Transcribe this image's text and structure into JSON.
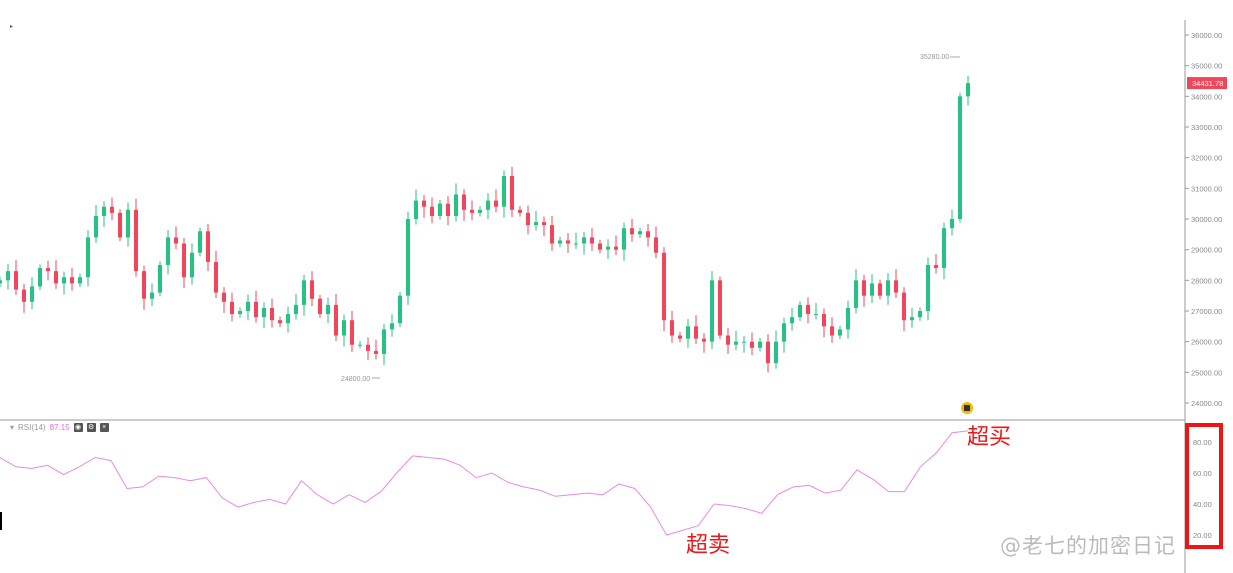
{
  "chart_data": [
    {
      "type": "candlestick",
      "ylim": [
        23600,
        36400
      ],
      "yticks": [
        "36000.00",
        "35000.00",
        "34000.00",
        "33000.00",
        "32000.00",
        "31000.00",
        "30000.00",
        "29000.00",
        "28000.00",
        "27000.00",
        "26000.00",
        "25000.00",
        "24000.00"
      ],
      "closes": [
        28000,
        28300,
        27700,
        27300,
        27800,
        28400,
        28300,
        27900,
        28100,
        27900,
        28100,
        29400,
        30100,
        30400,
        30200,
        29400,
        30300,
        28300,
        27400,
        27600,
        28500,
        29400,
        29200,
        28100,
        28900,
        29600,
        28600,
        27600,
        27300,
        26900,
        27000,
        27300,
        26800,
        27100,
        26700,
        26600,
        26900,
        27200,
        28000,
        27400,
        26900,
        27200,
        26200,
        26700,
        25900,
        25900,
        25700,
        25600,
        26400,
        26600,
        27500,
        30000,
        30600,
        30400,
        30100,
        30500,
        30100,
        30800,
        30300,
        30200,
        30300,
        30600,
        30400,
        31400,
        30300,
        30200,
        29800,
        29900,
        29800,
        29200,
        29300,
        29200,
        29200,
        29400,
        29200,
        29000,
        29100,
        29000,
        29700,
        29500,
        29600,
        29400,
        28900,
        26700,
        26200,
        26100,
        26500,
        26100,
        26000,
        28000,
        26200,
        25900,
        26000,
        26000,
        25800,
        26000,
        25300,
        26000,
        26600,
        26800,
        27200,
        26900,
        26900,
        26500,
        26200,
        26400,
        27100,
        28000,
        27500,
        27900,
        27500,
        28000,
        27600,
        26700,
        26800,
        27000,
        28500,
        28400,
        29700,
        30000,
        34000,
        34430
      ],
      "last_price": "34431.78",
      "high_label": "35280.00",
      "low_label": "24800.00",
      "colors": {
        "up": "#26c281",
        "down": "#f0455a"
      }
    },
    {
      "type": "line",
      "name": "RSI(14)",
      "value": "87.15",
      "ylim": [
        10,
        95
      ],
      "yticks": [
        "80.00",
        "60.00",
        "40.00",
        "20.00"
      ],
      "values": [
        70,
        64,
        63,
        65,
        59,
        64,
        70,
        68,
        50,
        51,
        58,
        57,
        55,
        57,
        44,
        38,
        41,
        43,
        40,
        55,
        46,
        40,
        46,
        41,
        48,
        60,
        71,
        70,
        69,
        65,
        57,
        60,
        54,
        51,
        49,
        45,
        46,
        47,
        46,
        53,
        50,
        38,
        20,
        23,
        26,
        40,
        39,
        37,
        34,
        46,
        51,
        52,
        47,
        49,
        62,
        56,
        48,
        48,
        64,
        73,
        86,
        87.15
      ],
      "color": "#e88ae8"
    }
  ],
  "annotations": {
    "overbought": "超买",
    "oversold": "超卖"
  },
  "watermark": "@老七的加密日记"
}
